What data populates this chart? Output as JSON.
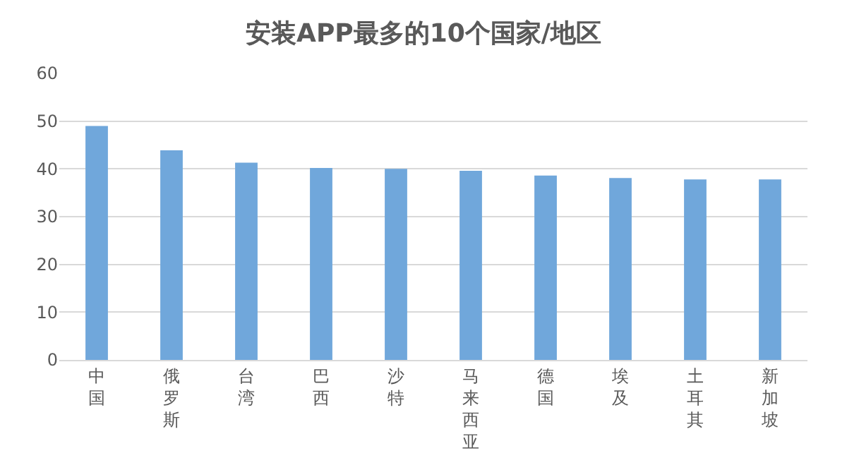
{
  "chart_data": {
    "type": "bar",
    "title": "安装APP最多的10个国家/地区",
    "categories": [
      "中国",
      "俄罗斯",
      "台湾",
      "巴西",
      "沙特",
      "马来西亚",
      "德国",
      "埃及",
      "土耳其",
      "新加坡"
    ],
    "values": [
      49,
      43.9,
      41.3,
      40.2,
      40,
      39.6,
      38.6,
      38.1,
      37.8,
      37.8
    ],
    "color": "#70a7db",
    "ylim": [
      0,
      60
    ],
    "yticks": [
      0,
      10,
      20,
      30,
      40,
      50,
      60
    ],
    "grid": "y"
  }
}
